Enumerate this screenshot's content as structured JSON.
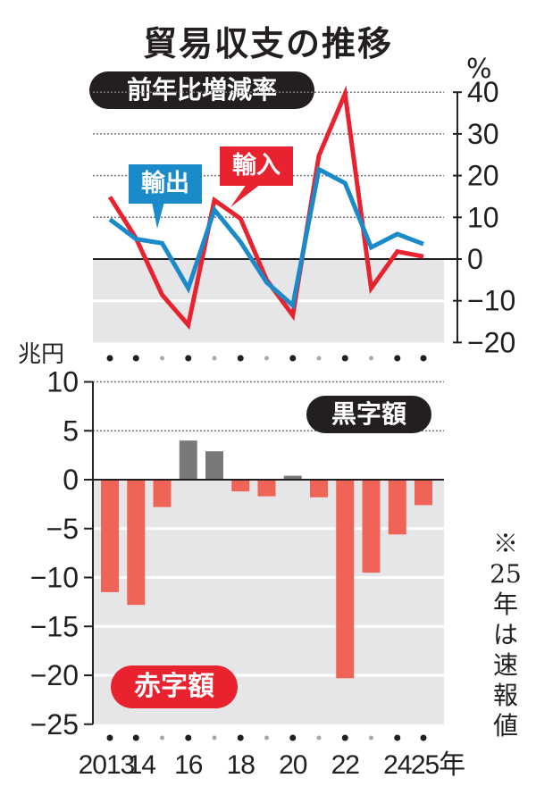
{
  "title": "貿易収支の推移",
  "top_panel": {
    "label": "前年比増減率",
    "unit": "%",
    "series_labels": {
      "exports": "輸出",
      "imports": "輸入"
    }
  },
  "bottom_panel": {
    "unit": "兆円",
    "surplus_label": "黒字額",
    "deficit_label": "赤字額"
  },
  "x_axis": {
    "tick_labels": [
      "2013",
      "14",
      "16",
      "18",
      "20",
      "22",
      "24",
      "25年"
    ]
  },
  "footnote": "※25年は速報値",
  "colors": {
    "exports": "#1b8ac8",
    "imports": "#e8232f",
    "surplus_bar": "#7a787a",
    "deficit_bar": "#f06457",
    "negative_bg": "#e6e6e8",
    "label_dark": "#231f20"
  },
  "chart_data": [
    {
      "type": "line",
      "title": "前年比増減率",
      "ylabel": "%",
      "ylim": [
        -20,
        40
      ],
      "yticks": [
        40,
        30,
        20,
        10,
        0,
        -10,
        -20
      ],
      "x": [
        2013,
        2014,
        2015,
        2016,
        2017,
        2018,
        2019,
        2020,
        2021,
        2022,
        2023,
        2024,
        2025
      ],
      "series": [
        {
          "name": "輸出",
          "values": [
            9.5,
            4.8,
            3.8,
            -7.0,
            11.8,
            4.1,
            -5.6,
            -11.1,
            21.5,
            18.2,
            2.8,
            6.0,
            3.6
          ]
        },
        {
          "name": "輸入",
          "values": [
            14.9,
            5.0,
            -8.6,
            -15.8,
            14.1,
            9.7,
            -5.0,
            -13.5,
            24.8,
            39.6,
            -7.0,
            1.8,
            0.6
          ]
        }
      ],
      "grid": true
    },
    {
      "type": "bar",
      "title": "貿易収支",
      "ylabel": "兆円",
      "ylim": [
        -25,
        10
      ],
      "yticks": [
        10,
        5,
        0,
        -5,
        -10,
        -15,
        -20,
        -25
      ],
      "categories": [
        "2013",
        "2014",
        "2015",
        "2016",
        "2017",
        "2018",
        "2019",
        "2020",
        "2021",
        "2022",
        "2023",
        "2024",
        "2025"
      ],
      "values": [
        -11.5,
        -12.8,
        -2.8,
        4.0,
        2.9,
        -1.2,
        -1.7,
        0.4,
        -1.8,
        -20.3,
        -9.5,
        -5.6,
        -2.6
      ],
      "legend": [
        "黒字額",
        "赤字額"
      ],
      "grid": true
    }
  ]
}
